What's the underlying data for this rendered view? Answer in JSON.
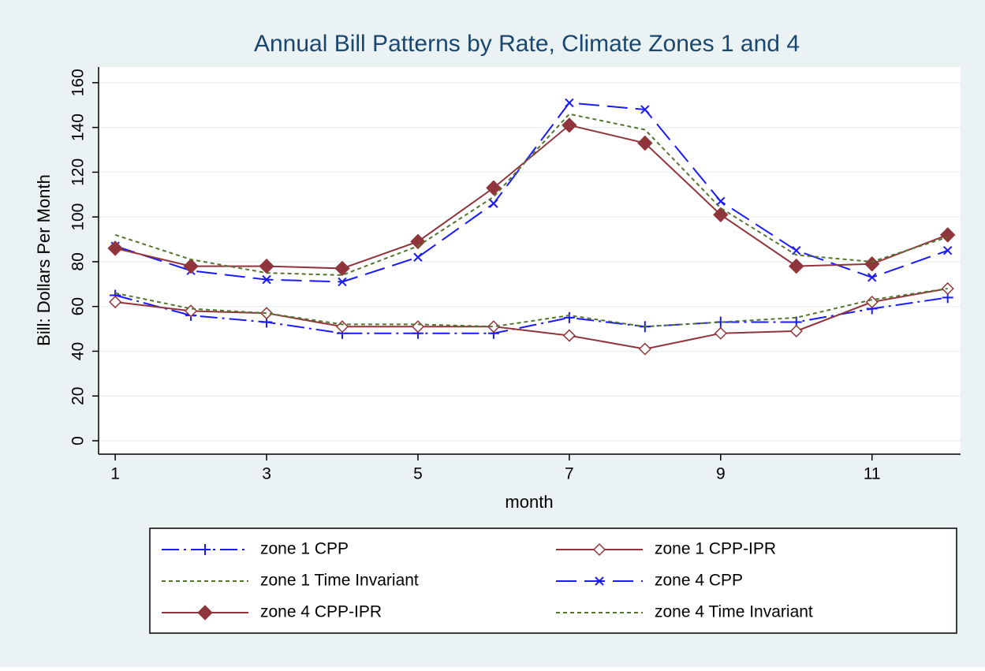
{
  "chart_data": {
    "type": "line",
    "title": "Annual Bill Patterns by Rate, Climate Zones 1 and 4",
    "xlabel": "month",
    "ylabel": "Bill:  Dollars Per Month",
    "x": [
      1,
      2,
      3,
      4,
      5,
      6,
      7,
      8,
      9,
      10,
      11,
      12
    ],
    "xlim": [
      0.78,
      12.17
    ],
    "xticks": [
      1,
      3,
      5,
      7,
      9,
      11
    ],
    "ylim": [
      -6,
      167
    ],
    "yticks": [
      0,
      20,
      40,
      60,
      80,
      100,
      120,
      140,
      160
    ],
    "grid": true,
    "series": [
      {
        "name": "zone 1 CPP",
        "color": "#1a1aff",
        "dash": "dashdot",
        "marker": "plus",
        "values": [
          65,
          56,
          53,
          48,
          48,
          48,
          55,
          51,
          53,
          53,
          59,
          64
        ]
      },
      {
        "name": "zone 1 CPP-IPR",
        "color": "#90353b",
        "dash": "solid",
        "marker": "hollow-diamond",
        "values": [
          62,
          58,
          57,
          51,
          51,
          51,
          47,
          41,
          48,
          49,
          62,
          68
        ]
      },
      {
        "name": "zone 1 Time Invariant",
        "color": "#55752f",
        "dash": "dot",
        "marker": "none",
        "values": [
          66,
          59,
          57,
          52,
          52,
          51,
          56,
          51,
          53,
          55,
          63,
          68
        ]
      },
      {
        "name": "zone 4 CPP",
        "color": "#1a1aff",
        "dash": "longdash",
        "marker": "x",
        "values": [
          87,
          76,
          72,
          71,
          82,
          106,
          151,
          148,
          107,
          85,
          73,
          85
        ]
      },
      {
        "name": "zone 4 CPP-IPR",
        "color": "#90353b",
        "dash": "solid",
        "marker": "diamond",
        "values": [
          86,
          78,
          78,
          77,
          89,
          113,
          141,
          133,
          101,
          78,
          79,
          92
        ]
      },
      {
        "name": "zone 4 Time Invariant",
        "color": "#55752f",
        "dash": "dot",
        "marker": "none",
        "values": [
          92,
          81,
          75,
          74,
          87,
          109,
          146,
          139,
          104,
          83,
          80,
          91
        ]
      }
    ]
  }
}
